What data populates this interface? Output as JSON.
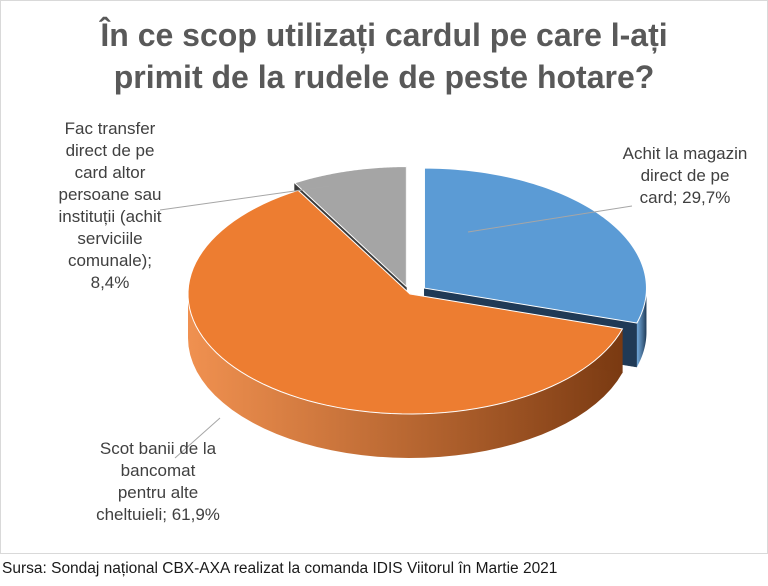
{
  "chart_data": {
    "type": "pie",
    "title_lines": [
      "În ce scop utilizați cardul pe care l-ați",
      "primit de la rudele de peste hotare?"
    ],
    "slices": [
      {
        "label_lines": [
          "Achit la magazin",
          "direct de pe",
          "card; 29,7%"
        ],
        "value": 29.7,
        "color": "#5B9BD5",
        "side_color": "#203A56"
      },
      {
        "label_lines": [
          "Scot banii de la",
          "bancomat",
          "pentru alte",
          "cheltuieli; 61,9%"
        ],
        "value": 61.9,
        "color": "#ED7D31",
        "side_color": "#7A3A12"
      },
      {
        "label_lines": [
          "Fac transfer",
          "direct de pe",
          "card altor",
          "persoane sau",
          "instituții (achit",
          "serviciile",
          "comunale);",
          "8,4%"
        ],
        "value": 8.4,
        "color": "#A5A5A5",
        "side_color": "#3B3B3B"
      }
    ],
    "legend": "none",
    "style": "3D exploded pie"
  },
  "source": "Sursa: Sondaj național CBX-AXA realizat la comanda IDIS Viitorul în Martie 2021"
}
